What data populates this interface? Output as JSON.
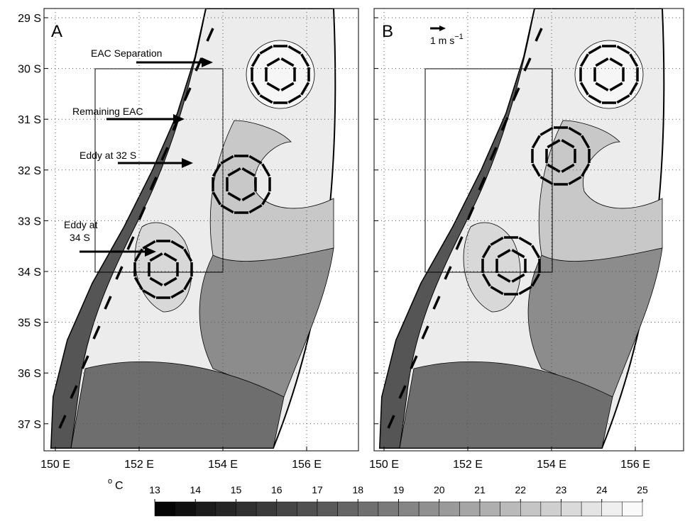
{
  "panels": [
    {
      "label": "A",
      "xticks": [
        {
          "value": 150,
          "label": "150 E"
        },
        {
          "value": 152,
          "label": "152 E"
        },
        {
          "value": 154,
          "label": "154 E"
        },
        {
          "value": 156,
          "label": "156 E"
        }
      ],
      "yticks": [
        {
          "value": 29,
          "label": "29 S"
        },
        {
          "value": 30,
          "label": "30 S"
        },
        {
          "value": 31,
          "label": "31 S"
        },
        {
          "value": 32,
          "label": "32 S"
        },
        {
          "value": 33,
          "label": "33 S"
        },
        {
          "value": 34,
          "label": "34 S"
        },
        {
          "value": 35,
          "label": "35 S"
        },
        {
          "value": 36,
          "label": "36 S"
        },
        {
          "value": 37,
          "label": "37 S"
        }
      ],
      "annotations": [
        "EAC Separation",
        "Remaining EAC",
        "Eddy at 32 S",
        "Eddy at",
        "34 S"
      ]
    },
    {
      "label": "B",
      "xticks": [
        {
          "value": 150,
          "label": "150 E"
        },
        {
          "value": 152,
          "label": "152 E"
        },
        {
          "value": 154,
          "label": "154 E"
        },
        {
          "value": 156,
          "label": "156 E"
        }
      ],
      "scale_label": "1 m s",
      "scale_exponent": "−1"
    }
  ],
  "colorbar": {
    "unit_degree": "o",
    "unit": "C",
    "ticks": [
      13,
      14,
      15,
      16,
      17,
      18,
      19,
      20,
      21,
      22,
      23,
      24,
      25
    ]
  }
}
